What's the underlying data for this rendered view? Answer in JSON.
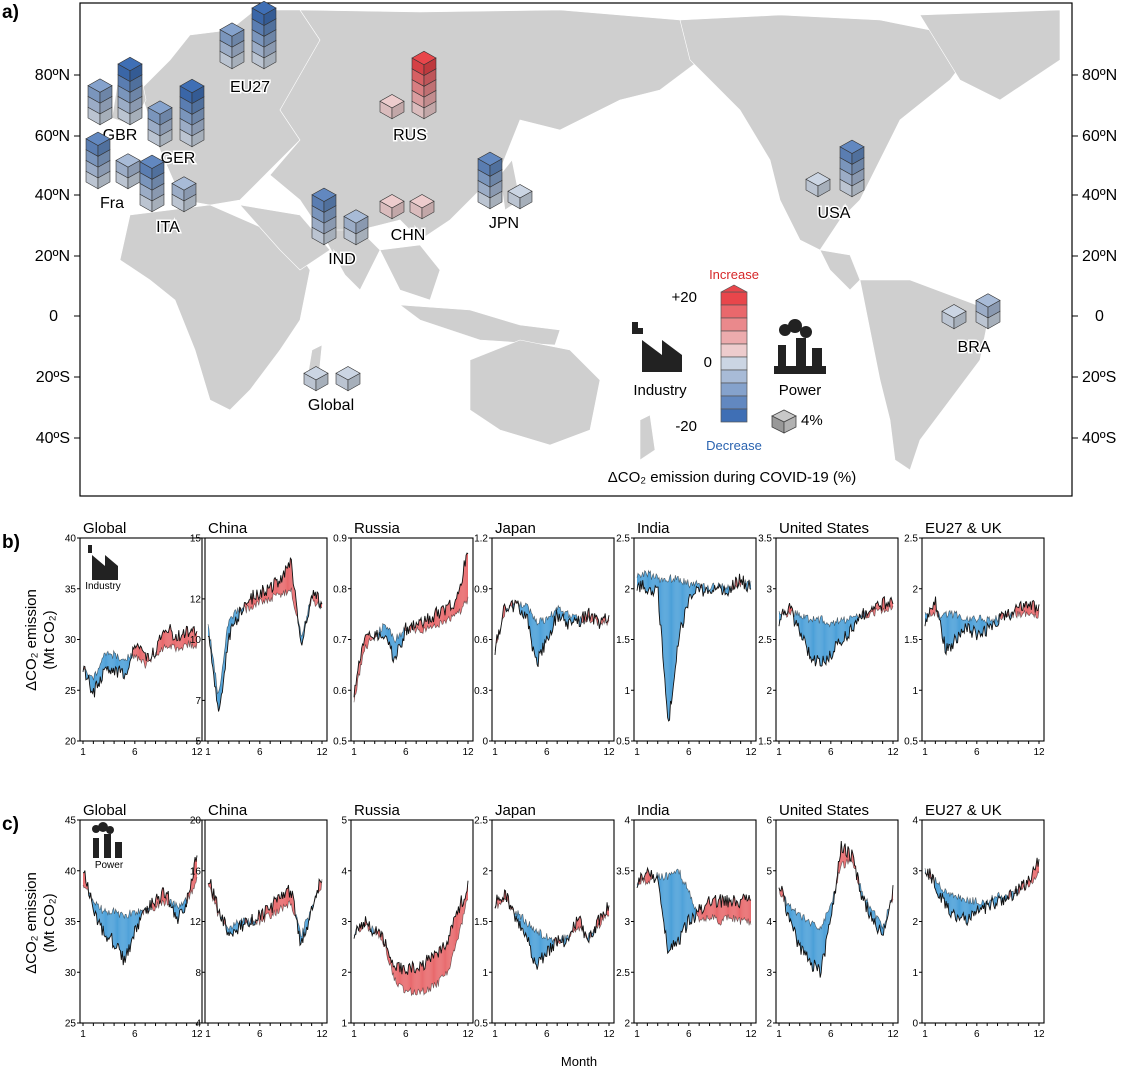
{
  "panel_labels": {
    "a": "a)",
    "b": "b)",
    "c": "c)"
  },
  "map": {
    "lat_labels": [
      "80ºN",
      "60ºN",
      "40ºN",
      "20ºN",
      "0",
      "20ºS",
      "40ºS"
    ],
    "legend": {
      "increase": "Increase",
      "decrease": "Decrease",
      "plus": "+20",
      "zero": "0",
      "minus": "-20",
      "industry": "Industry",
      "power": "Power",
      "unit": "4%",
      "title": "ΔCO₂ emission during COVID-19 (%)",
      "colors": {
        "increase": "#e8464b",
        "decrease": "#3f6fb5",
        "neutral": "#eeeeee"
      }
    },
    "regions": [
      {
        "label": "EU27",
        "industry": -12,
        "power": -20
      },
      {
        "label": "GBR",
        "industry": -12,
        "power": -20
      },
      {
        "label": "GER",
        "industry": -12,
        "power": -20
      },
      {
        "label": "Fra",
        "industry": -16,
        "power": -8
      },
      {
        "label": "ITA",
        "industry": -16,
        "power": -8
      },
      {
        "label": "RUS",
        "industry": 4,
        "power": 20
      },
      {
        "label": "IND",
        "industry": -16,
        "power": -8
      },
      {
        "label": "CHN",
        "industry": 4,
        "power": 4
      },
      {
        "label": "JPN",
        "industry": -16,
        "power": -4
      },
      {
        "label": "USA",
        "industry": -4,
        "power": -16
      },
      {
        "label": "BRA",
        "industry": -4,
        "power": -8
      },
      {
        "label": "Global",
        "industry": -4,
        "power": -4
      }
    ]
  },
  "chart_data": [
    {
      "type": "area",
      "row": "b",
      "subplot": "Global",
      "icon": "Industry",
      "ylabel": "ΔCO₂ emission",
      "ylabel_unit": "(Mt CO₂)",
      "ylim": [
        20,
        40
      ],
      "yticks": [
        20,
        25,
        30,
        35,
        40
      ],
      "xticks": [
        1,
        6,
        12
      ],
      "x": [
        1,
        2,
        3,
        4,
        5,
        6,
        7,
        8,
        9,
        10,
        11,
        12
      ],
      "series": [
        {
          "values": [
            27.5,
            24.5,
            27,
            27,
            26.5,
            29.5,
            28,
            29,
            31.5,
            30,
            31,
            30.5
          ]
        },
        {
          "values": [
            27,
            26,
            28.5,
            28.5,
            28,
            28.5,
            27.5,
            28.5,
            29.5,
            29,
            29.5,
            29.5
          ]
        }
      ]
    },
    {
      "type": "area",
      "row": "b",
      "subplot": "China",
      "ylim": [
        5,
        15
      ],
      "yticks": [
        5,
        7,
        10,
        12,
        15
      ],
      "xticks": [
        1,
        6,
        12
      ],
      "x": [
        1,
        2,
        3,
        4,
        5,
        6,
        7,
        8,
        9,
        10,
        11,
        12
      ],
      "series": [
        {
          "values": [
            10.5,
            6.2,
            10.2,
            11.2,
            12,
            12.3,
            12.5,
            13,
            14,
            9.5,
            12.3,
            11.8
          ]
        },
        {
          "values": [
            10.8,
            7.2,
            11,
            11.5,
            11.5,
            11.8,
            12,
            12.2,
            12.5,
            10.2,
            12,
            11.5
          ]
        }
      ]
    },
    {
      "type": "area",
      "row": "b",
      "subplot": "Russia",
      "ylim": [
        0.5,
        0.9
      ],
      "yticks": [
        0.5,
        0.6,
        0.7,
        0.8,
        0.9
      ],
      "xticks": [
        1,
        6,
        12
      ],
      "x": [
        1,
        2,
        3,
        4,
        5,
        6,
        7,
        8,
        9,
        10,
        11,
        12
      ],
      "series": [
        {
          "values": [
            0.6,
            0.7,
            0.71,
            0.7,
            0.66,
            0.72,
            0.73,
            0.74,
            0.75,
            0.76,
            0.78,
            0.88
          ]
        },
        {
          "values": [
            0.58,
            0.68,
            0.71,
            0.73,
            0.7,
            0.72,
            0.72,
            0.72,
            0.73,
            0.74,
            0.75,
            0.78
          ]
        }
      ]
    },
    {
      "type": "area",
      "row": "b",
      "subplot": "Japan",
      "ylim": [
        0,
        1.2
      ],
      "yticks": [
        0,
        0.3,
        0.6,
        0.9,
        1.2
      ],
      "xticks": [
        1,
        6,
        12
      ],
      "x": [
        1,
        2,
        3,
        4,
        5,
        6,
        7,
        8,
        9,
        10,
        11,
        12
      ],
      "series": [
        {
          "values": [
            0.55,
            0.8,
            0.8,
            0.75,
            0.45,
            0.6,
            0.75,
            0.7,
            0.7,
            0.75,
            0.7,
            0.72
          ]
        },
        {
          "values": [
            0.55,
            0.78,
            0.8,
            0.8,
            0.7,
            0.72,
            0.78,
            0.75,
            0.72,
            0.72,
            0.7,
            0.7
          ]
        }
      ]
    },
    {
      "type": "area",
      "row": "b",
      "subplot": "India",
      "ylim": [
        0.5,
        2.5
      ],
      "yticks": [
        0.5,
        1.0,
        1.5,
        2.0,
        2.5
      ],
      "xticks": [
        1,
        6,
        12
      ],
      "x": [
        1,
        2,
        3,
        4,
        5,
        6,
        7,
        8,
        9,
        10,
        11,
        12
      ],
      "series": [
        {
          "values": [
            2.05,
            2.0,
            2.0,
            0.65,
            1.5,
            1.9,
            2.0,
            1.95,
            2.0,
            2.0,
            2.1,
            2.0
          ]
        },
        {
          "values": [
            2.15,
            2.15,
            2.1,
            2.1,
            2.1,
            2.05,
            2.05,
            2.0,
            2.05,
            2.0,
            2.05,
            2.05
          ]
        }
      ]
    },
    {
      "type": "area",
      "row": "b",
      "subplot": "United States",
      "ylim": [
        1.5,
        3.5
      ],
      "yticks": [
        1.5,
        2.0,
        2.5,
        3.0,
        3.5
      ],
      "xticks": [
        1,
        6,
        12
      ],
      "x": [
        1,
        2,
        3,
        4,
        5,
        6,
        7,
        8,
        9,
        10,
        11,
        12
      ],
      "series": [
        {
          "values": [
            2.7,
            2.8,
            2.6,
            2.35,
            2.25,
            2.35,
            2.5,
            2.6,
            2.75,
            2.8,
            2.85,
            2.9
          ]
        },
        {
          "values": [
            2.75,
            2.75,
            2.75,
            2.7,
            2.7,
            2.65,
            2.7,
            2.7,
            2.75,
            2.75,
            2.8,
            2.8
          ]
        }
      ]
    },
    {
      "type": "area",
      "row": "b",
      "subplot": "EU27 & UK",
      "ylim": [
        0.5,
        2.5
      ],
      "yticks": [
        0.5,
        1.0,
        1.5,
        2.0,
        2.5
      ],
      "xticks": [
        1,
        6,
        12
      ],
      "x": [
        1,
        2,
        3,
        4,
        5,
        6,
        7,
        8,
        9,
        10,
        11,
        12
      ],
      "series": [
        {
          "values": [
            1.7,
            1.9,
            1.4,
            1.5,
            1.6,
            1.55,
            1.6,
            1.7,
            1.75,
            1.8,
            1.85,
            1.8
          ]
        },
        {
          "values": [
            1.75,
            1.75,
            1.75,
            1.75,
            1.7,
            1.7,
            1.7,
            1.7,
            1.75,
            1.75,
            1.75,
            1.75
          ]
        }
      ]
    },
    {
      "type": "area",
      "row": "c",
      "subplot": "Global",
      "icon": "Power",
      "ylabel": "ΔCO₂ emission",
      "ylabel_unit": "(Mt CO₂)",
      "xlabel": "Month",
      "ylim": [
        25,
        45
      ],
      "yticks": [
        25,
        30,
        35,
        40,
        45
      ],
      "xticks": [
        1,
        6,
        12
      ],
      "x": [
        1,
        2,
        3,
        4,
        5,
        6,
        7,
        8,
        9,
        10,
        11,
        12
      ],
      "series": [
        {
          "values": [
            40.5,
            36,
            34,
            33,
            31,
            34,
            36,
            37,
            38,
            35,
            37,
            41.5
          ]
        },
        {
          "values": [
            38.5,
            37,
            36,
            36,
            35.5,
            36,
            36,
            36.5,
            37,
            36.5,
            37,
            39
          ]
        }
      ]
    },
    {
      "type": "area",
      "row": "c",
      "subplot": "China",
      "xlabel": "Month",
      "ylim": [
        4,
        20
      ],
      "yticks": [
        4,
        8,
        12,
        16,
        20
      ],
      "xticks": [
        1,
        6,
        12
      ],
      "x": [
        1,
        2,
        3,
        4,
        5,
        6,
        7,
        8,
        9,
        10,
        11,
        12
      ],
      "series": [
        {
          "values": [
            15.5,
            13,
            11,
            11.5,
            12,
            12.5,
            13,
            14,
            14.5,
            10,
            13,
            15.5
          ]
        },
        {
          "values": [
            15,
            12.5,
            11.5,
            12,
            12,
            12,
            12.5,
            13,
            13.5,
            11,
            13,
            15
          ]
        }
      ]
    },
    {
      "type": "area",
      "row": "c",
      "subplot": "Russia",
      "xlabel": "Month",
      "ylim": [
        1,
        5
      ],
      "yticks": [
        1,
        2,
        3,
        4,
        5
      ],
      "xticks": [
        1,
        6,
        12
      ],
      "x": [
        1,
        2,
        3,
        4,
        5,
        6,
        7,
        8,
        9,
        10,
        11,
        12
      ],
      "series": [
        {
          "values": [
            2.8,
            3.0,
            2.8,
            2.6,
            2.1,
            2.0,
            2.1,
            2.2,
            2.3,
            2.6,
            3.2,
            3.7
          ]
        },
        {
          "values": [
            2.75,
            2.95,
            2.8,
            2.5,
            1.8,
            1.65,
            1.6,
            1.65,
            1.75,
            2.0,
            2.6,
            3.5
          ]
        }
      ]
    },
    {
      "type": "area",
      "row": "c",
      "subplot": "Japan",
      "xlabel": "Month",
      "ylim": [
        0.5,
        2.5
      ],
      "yticks": [
        0.5,
        1.0,
        1.5,
        2.0,
        2.5
      ],
      "xticks": [
        1,
        6,
        12
      ],
      "x": [
        1,
        2,
        3,
        4,
        5,
        6,
        7,
        8,
        9,
        10,
        11,
        12
      ],
      "series": [
        {
          "values": [
            1.7,
            1.75,
            1.55,
            1.35,
            1.05,
            1.2,
            1.3,
            1.3,
            1.55,
            1.3,
            1.5,
            1.65
          ]
        },
        {
          "values": [
            1.65,
            1.7,
            1.6,
            1.5,
            1.4,
            1.35,
            1.3,
            1.35,
            1.45,
            1.35,
            1.45,
            1.6
          ]
        }
      ]
    },
    {
      "type": "area",
      "row": "c",
      "subplot": "India",
      "xlabel": "Month",
      "ylim": [
        2.0,
        4.0
      ],
      "yticks": [
        2.0,
        2.5,
        3.0,
        3.5,
        4.0
      ],
      "xticks": [
        1,
        6,
        12
      ],
      "x": [
        1,
        2,
        3,
        4,
        5,
        6,
        7,
        8,
        9,
        10,
        11,
        12
      ],
      "series": [
        {
          "values": [
            3.4,
            3.5,
            3.4,
            2.7,
            2.8,
            3.0,
            3.1,
            3.2,
            3.2,
            3.2,
            3.2,
            3.25
          ]
        },
        {
          "values": [
            3.4,
            3.4,
            3.45,
            3.45,
            3.5,
            3.3,
            3.0,
            3.05,
            3.0,
            3.05,
            3.0,
            3.0
          ]
        }
      ]
    },
    {
      "type": "area",
      "row": "c",
      "subplot": "United States",
      "xlabel": "Month",
      "ylim": [
        2,
        6
      ],
      "yticks": [
        2,
        3,
        4,
        5,
        6
      ],
      "xticks": [
        1,
        6,
        12
      ],
      "x": [
        1,
        2,
        3,
        4,
        5,
        6,
        7,
        8,
        9,
        10,
        11,
        12
      ],
      "series": [
        {
          "values": [
            4.8,
            4.0,
            3.5,
            3.2,
            3.0,
            4.0,
            5.5,
            5.3,
            4.5,
            4.0,
            3.8,
            4.6
          ]
        },
        {
          "values": [
            4.6,
            4.3,
            4.1,
            4.0,
            3.9,
            4.3,
            5.1,
            5.2,
            4.6,
            4.2,
            3.9,
            4.5
          ]
        }
      ]
    },
    {
      "type": "area",
      "row": "c",
      "subplot": "EU27 & UK",
      "xlabel": "Month",
      "ylim": [
        0,
        4
      ],
      "yticks": [
        0,
        1,
        2,
        3,
        4
      ],
      "xticks": [
        1,
        6,
        12
      ],
      "x": [
        1,
        2,
        3,
        4,
        5,
        6,
        7,
        8,
        9,
        10,
        11,
        12
      ],
      "series": [
        {
          "values": [
            3.1,
            2.7,
            2.3,
            2.1,
            2.0,
            2.2,
            2.3,
            2.4,
            2.5,
            2.6,
            2.8,
            3.2
          ]
        },
        {
          "values": [
            3.0,
            2.8,
            2.6,
            2.5,
            2.4,
            2.4,
            2.4,
            2.5,
            2.5,
            2.6,
            2.7,
            3.0
          ]
        }
      ]
    }
  ]
}
